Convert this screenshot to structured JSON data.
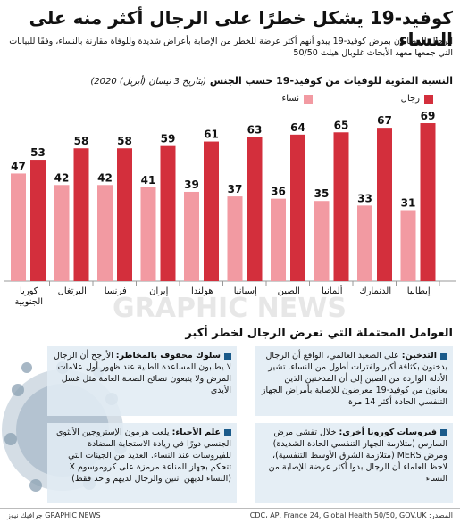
{
  "title": "كوفيد-19 يشكل خطرًا على الرجال أكثر منه على النساء",
  "subtitle": "الرجال المصابون بمرض كوفيد-19 يبدو أنهم أكثر عرضة للخطر من الإصابة بأعراض شديدة وللوفاة مقارنة بالنساء، وفقًا للبيانات التي جمعها معهد الأبحاث غلوبال هيلث 50/50",
  "chart_heading": "النسبة المئوية للوفيات من كوفيد-19 حسب الجنس",
  "chart_date": "(بتاريخ 3 نيسان (أبريل) 2020)",
  "chart_data": {
    "type": "bar",
    "categories": [
      "كوريا الجنوبية",
      "البرتغال",
      "فرنسا",
      "إيران",
      "هولندا",
      "إسبانيا",
      "الصين",
      "ألمانيا",
      "الدنمارك",
      "إيطاليا"
    ],
    "category_lines": [
      [
        "كوريا",
        "الجنوبية"
      ],
      [
        "البرتغال"
      ],
      [
        "فرنسا"
      ],
      [
        "إيران"
      ],
      [
        "هولندا"
      ],
      [
        "إسبانيا"
      ],
      [
        "الصين"
      ],
      [
        "ألمانيا"
      ],
      [
        "الدنمارك"
      ],
      [
        "إيطاليا"
      ]
    ],
    "series": [
      {
        "name": "نساء",
        "color": "#f29aa2",
        "values": [
          47,
          42,
          42,
          41,
          39,
          37,
          36,
          35,
          33,
          31
        ]
      },
      {
        "name": "رجال",
        "color": "#d32f3c",
        "values": [
          53,
          58,
          58,
          59,
          61,
          63,
          64,
          65,
          67,
          69
        ]
      }
    ],
    "ylim": [
      0,
      100
    ]
  },
  "factors_title": "العوامل المحتملة التي تعرض الرجال لخطر أكبر",
  "factors": [
    {
      "heading": "التدخين:",
      "text": "على الصعيد العالمي، الواقع أن الرجال يدخنون بكثافة أكبر ولفترات أطول من النساء. تشير الأدلة الواردة من الصين إلى أن المدخنين الذين يعانون من كوفيد-19 معرضون للإصابة بأمراض الجهاز التنفسي الحادة أكثر 14 مرة"
    },
    {
      "heading": "سلوك محفوف بالمخاطر:",
      "text": "الأرجح أن الرجال لا يطلبون المساعدة الطبية عند ظهور أول علامات المرض ولا يتبعون نصائح الصحة العامة مثل غسل الأيدي"
    },
    {
      "heading": "فيروسات كورونا أخرى:",
      "text": "خلال تفشي مرض السارس (متلازمة الجهاز التنفسي الحادة الشديدة) ومرض MERS (متلازمة الشرق الأوسط التنفسية)، لاحظ العلماء أن الرجال بدوا أكثر عرضة للإصابة من النساء"
    },
    {
      "heading": "علم الأحياء:",
      "text": "يلعب هرمون الإستروجين الأنثوي الجنسي دورًا في زيادة الاستجابة المضادة للفيروسات عند النساء. العديد من الجينات التي تتحكم بجهاز المناعة مرمزة على كروموسوم X (النساء لديهن اثنين والرجال لديهم واحد فقط)"
    }
  ],
  "footer": {
    "source": "المصدر: CDC، AP, France 24, Global Health 50/50, GOV.UK",
    "credit": "GRAPHIC NEWS جرافيك نيوز"
  },
  "watermark": "GRAPHIC NEWS"
}
